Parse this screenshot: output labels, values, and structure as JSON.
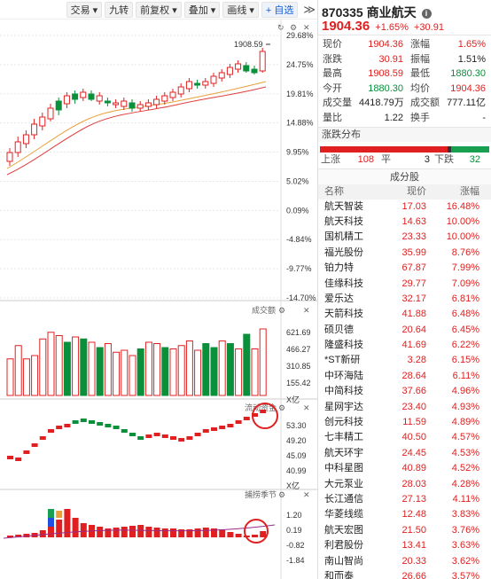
{
  "toolbar": {
    "items": [
      "交易",
      "九转",
      "前复权",
      "叠加",
      "画线"
    ],
    "watchlist_label": "+ 自选",
    "more_symbol": "≫"
  },
  "kline": {
    "high_label": "1908.59",
    "y_axis": [
      "29.68%",
      "24.75%",
      "19.81%",
      "14.88%",
      "9.95%",
      "5.02%",
      "0.09%",
      "-4.84%",
      "-9.77%",
      "-14.70%"
    ]
  },
  "volume": {
    "title": "成交额",
    "y_axis": [
      "621.69",
      "466.27",
      "310.85",
      "155.42",
      "X亿"
    ]
  },
  "fund_flow": {
    "title": "流动资金",
    "y_axis": [
      "53.30",
      "49.20",
      "45.09",
      "40.99",
      "X亿"
    ]
  },
  "capture": {
    "title": "捕捞季节",
    "y_axis": [
      "1.20",
      "0.19",
      "-0.82",
      "-1.84"
    ]
  },
  "quote": {
    "code": "870335",
    "name": "商业航天",
    "price": "1904.36",
    "change_pct": "+1.65%",
    "change_amt": "+30.91",
    "stats": [
      {
        "label1": "现价",
        "value1": "1904.36",
        "label2": "涨幅",
        "value2": "1.65%"
      },
      {
        "label1": "涨跌",
        "value1": "30.91",
        "label2": "振幅",
        "value2": "1.51%"
      },
      {
        "label1": "最高",
        "value1": "1908.59",
        "label2": "最低",
        "value2": "1880.30"
      },
      {
        "label1": "今开",
        "value1": "1880.30",
        "label2": "均价",
        "value2": "1904.36"
      },
      {
        "label1": "成交量",
        "value1": "4418.79万",
        "label2": "成交额",
        "value2": "777.11亿"
      },
      {
        "label1": "量比",
        "value1": "1.22",
        "label2": "换手",
        "value2": "-"
      }
    ],
    "distribution": {
      "title": "涨跌分布",
      "up_label": "上涨",
      "up_count": "108",
      "flat_label": "平",
      "flat_count": "3",
      "down_label": "下跌",
      "down_count": "32"
    },
    "components": {
      "title": "成分股",
      "headers": [
        "名称",
        "现价",
        "涨幅"
      ],
      "rows": [
        {
          "name": "航天智装",
          "price": "17.03",
          "chg": "16.48%"
        },
        {
          "name": "航天科技",
          "price": "14.63",
          "chg": "10.00%"
        },
        {
          "name": "国机精工",
          "price": "23.33",
          "chg": "10.00%"
        },
        {
          "name": "福光股份",
          "price": "35.99",
          "chg": "8.76%"
        },
        {
          "name": "铂力特",
          "price": "67.87",
          "chg": "7.99%"
        },
        {
          "name": "佳缘科技",
          "price": "29.77",
          "chg": "7.09%"
        },
        {
          "name": "爱乐达",
          "price": "32.17",
          "chg": "6.81%"
        },
        {
          "name": "天箭科技",
          "price": "41.88",
          "chg": "6.48%"
        },
        {
          "name": "硕贝德",
          "price": "20.64",
          "chg": "6.45%"
        },
        {
          "name": "隆盛科技",
          "price": "41.69",
          "chg": "6.22%"
        },
        {
          "name": "*ST新研",
          "price": "3.28",
          "chg": "6.15%"
        },
        {
          "name": "中环海陆",
          "price": "28.64",
          "chg": "6.11%"
        },
        {
          "name": "中简科技",
          "price": "37.66",
          "chg": "4.96%"
        },
        {
          "name": "星网宇达",
          "price": "23.40",
          "chg": "4.93%"
        },
        {
          "name": "创元科技",
          "price": "11.59",
          "chg": "4.89%"
        },
        {
          "name": "七丰精工",
          "price": "40.50",
          "chg": "4.57%"
        },
        {
          "name": "航天环宇",
          "price": "24.45",
          "chg": "4.53%"
        },
        {
          "name": "中科星图",
          "price": "40.89",
          "chg": "4.52%"
        },
        {
          "name": "大元泵业",
          "price": "28.03",
          "chg": "4.28%"
        },
        {
          "name": "长江通信",
          "price": "27.13",
          "chg": "4.11%"
        },
        {
          "name": "华菱线缆",
          "price": "12.48",
          "chg": "3.83%"
        },
        {
          "name": "航天宏图",
          "price": "21.50",
          "chg": "3.76%"
        },
        {
          "name": "利君股份",
          "price": "13.41",
          "chg": "3.63%"
        },
        {
          "name": "南山智尚",
          "price": "20.33",
          "chg": "3.62%"
        },
        {
          "name": "和而泰",
          "price": "26.66",
          "chg": "3.57%"
        },
        {
          "name": "芯动联科",
          "price": "66.15",
          "chg": "3.52%"
        }
      ]
    }
  },
  "colors": {
    "up": "#e02020",
    "down": "#0a8f3a",
    "ma_orange": "#e8a13a",
    "ma_red": "#e04040",
    "highlight_circle": "#e02020"
  },
  "icons": {
    "refresh": "refresh-icon",
    "settings": "settings-icon",
    "close": "close-icon",
    "info": "info-icon"
  }
}
